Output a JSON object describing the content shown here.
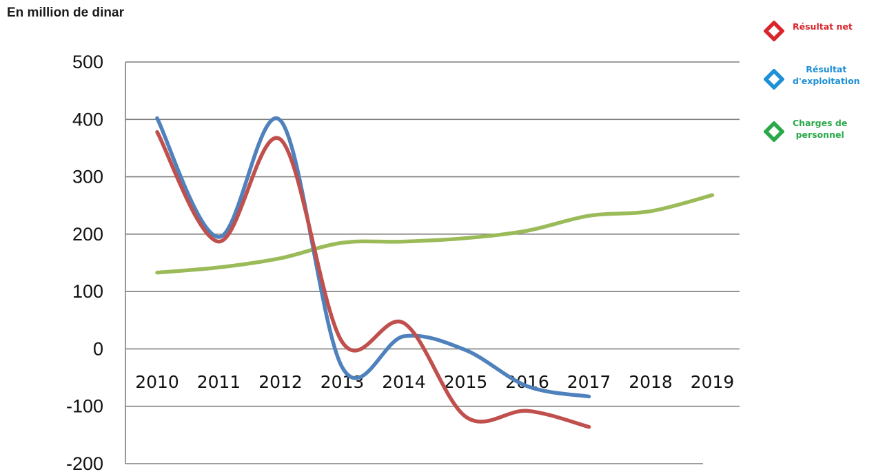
{
  "unit_label": "En million de dinar",
  "colors": {
    "net": "#c0504d",
    "exploitation": "#4f81bd",
    "personnel": "#9bbb59",
    "grid": "#7f7f7f",
    "legend_net": "#d9262c",
    "legend_exploitation": "#1e90d6",
    "legend_personnel": "#2aa84a"
  },
  "legend": [
    {
      "label": "Résultat net",
      "color": "#d9262c",
      "icon": "diamond-outline-icon"
    },
    {
      "label": "Résultat\nd'exploitation",
      "color": "#1e90d6",
      "icon": "diamond-outline-icon"
    },
    {
      "label": "Charges de\npersonnel",
      "color": "#2aa84a",
      "icon": "diamond-outline-icon"
    }
  ],
  "chart_data": {
    "type": "line",
    "title": "",
    "ylabel": "En million de dinar",
    "x": [
      "2010",
      "2011",
      "2012",
      "2013",
      "2014",
      "2015",
      "2016",
      "2017",
      "2018",
      "2019"
    ],
    "ylim": [
      -200,
      500
    ],
    "yticks": [
      500,
      400,
      300,
      200,
      100,
      0,
      -100,
      -200
    ],
    "grid": true,
    "legend_position": "top-right",
    "series": [
      {
        "name": "Résultat net",
        "color": "#c0504d",
        "values": [
          378,
          187,
          365,
          12,
          45,
          -118,
          -108,
          -136,
          null,
          null
        ]
      },
      {
        "name": "Résultat d'exploitation",
        "color": "#4f81bd",
        "values": [
          402,
          195,
          398,
          -32,
          22,
          -2,
          -65,
          -83,
          null,
          null
        ]
      },
      {
        "name": "Charges de personnel",
        "color": "#9bbb59",
        "values": [
          133,
          142,
          158,
          185,
          187,
          193,
          206,
          232,
          240,
          268
        ]
      }
    ]
  }
}
